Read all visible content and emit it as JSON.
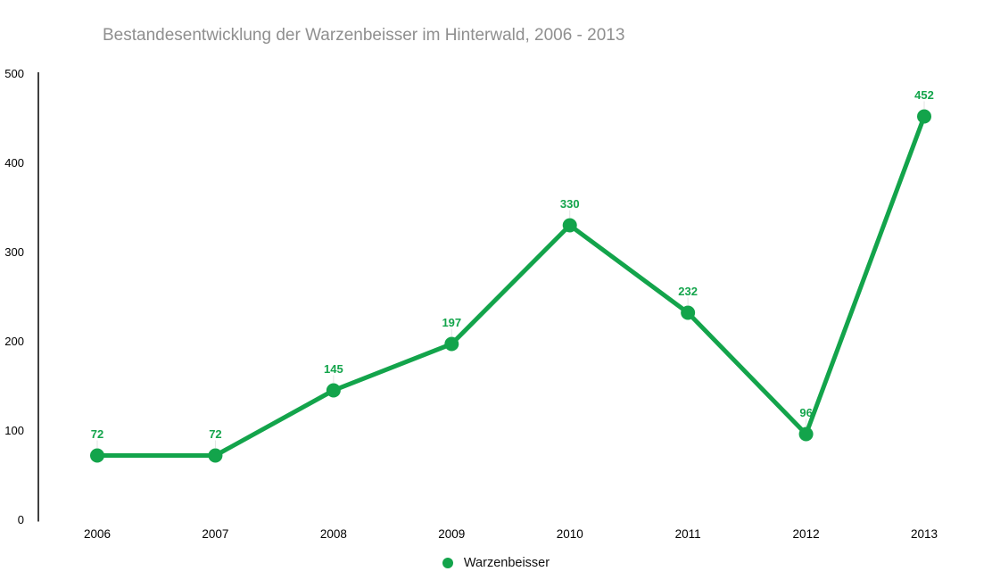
{
  "chart_data": {
    "type": "line",
    "title": "Bestandesentwicklung der Warzenbeisser im Hinterwald, 2006 - 2013",
    "categories": [
      "2006",
      "2007",
      "2008",
      "2009",
      "2010",
      "2011",
      "2012",
      "2013"
    ],
    "series": [
      {
        "name": "Warzenbeisser",
        "values": [
          72,
          72,
          145,
          197,
          330,
          232,
          96,
          452
        ]
      }
    ],
    "xlabel": "",
    "ylabel": "",
    "ylim": [
      0,
      500
    ],
    "yticks": [
      0,
      100,
      200,
      300,
      400,
      500
    ],
    "grid": false,
    "show_data_labels": true,
    "legend_position": "bottom",
    "colors": {
      "line": "#13a44b",
      "data_label": "#13a44b",
      "title": "#8f8f8f",
      "axis": "#000000",
      "tick_text": "#000000",
      "callout": "#e3e3e3",
      "background": "#ffffff"
    }
  }
}
